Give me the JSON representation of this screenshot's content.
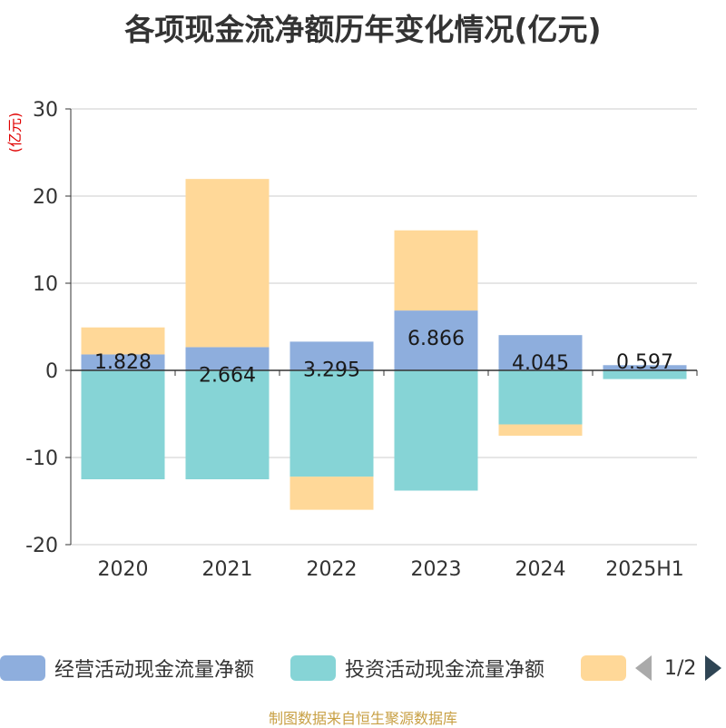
{
  "title": "各项现金流净额历年变化情况(亿元)",
  "source": "制图数据来自恒生聚源数据库",
  "pager": {
    "text": "1/2"
  },
  "chart_data": {
    "type": "bar",
    "stacked": true,
    "ylabel": "(亿元)",
    "ylim": [
      -20,
      30
    ],
    "yticks": [
      30,
      20,
      10,
      0,
      -10,
      -20
    ],
    "grid": true,
    "legend_position": "bottom",
    "categories": [
      "2020",
      "2021",
      "2022",
      "2023",
      "2024",
      "2025H1"
    ],
    "series": [
      {
        "name": "经营活动现金流量净额",
        "color": "#8eaedd",
        "values": [
          1.828,
          2.664,
          3.295,
          6.866,
          4.045,
          0.597
        ],
        "labels": [
          "1.828",
          "2.664",
          "3.295",
          "6.866",
          "4.045",
          "0.597"
        ]
      },
      {
        "name": "投资活动现金流量净额",
        "color": "#86d4d6",
        "values": [
          -12.5,
          -12.5,
          -12.2,
          -13.8,
          -6.2,
          -1.0
        ]
      },
      {
        "name": "",
        "color": "#ffd898",
        "values": [
          3.1,
          19.3,
          -3.8,
          9.2,
          -1.3,
          0
        ]
      }
    ]
  }
}
